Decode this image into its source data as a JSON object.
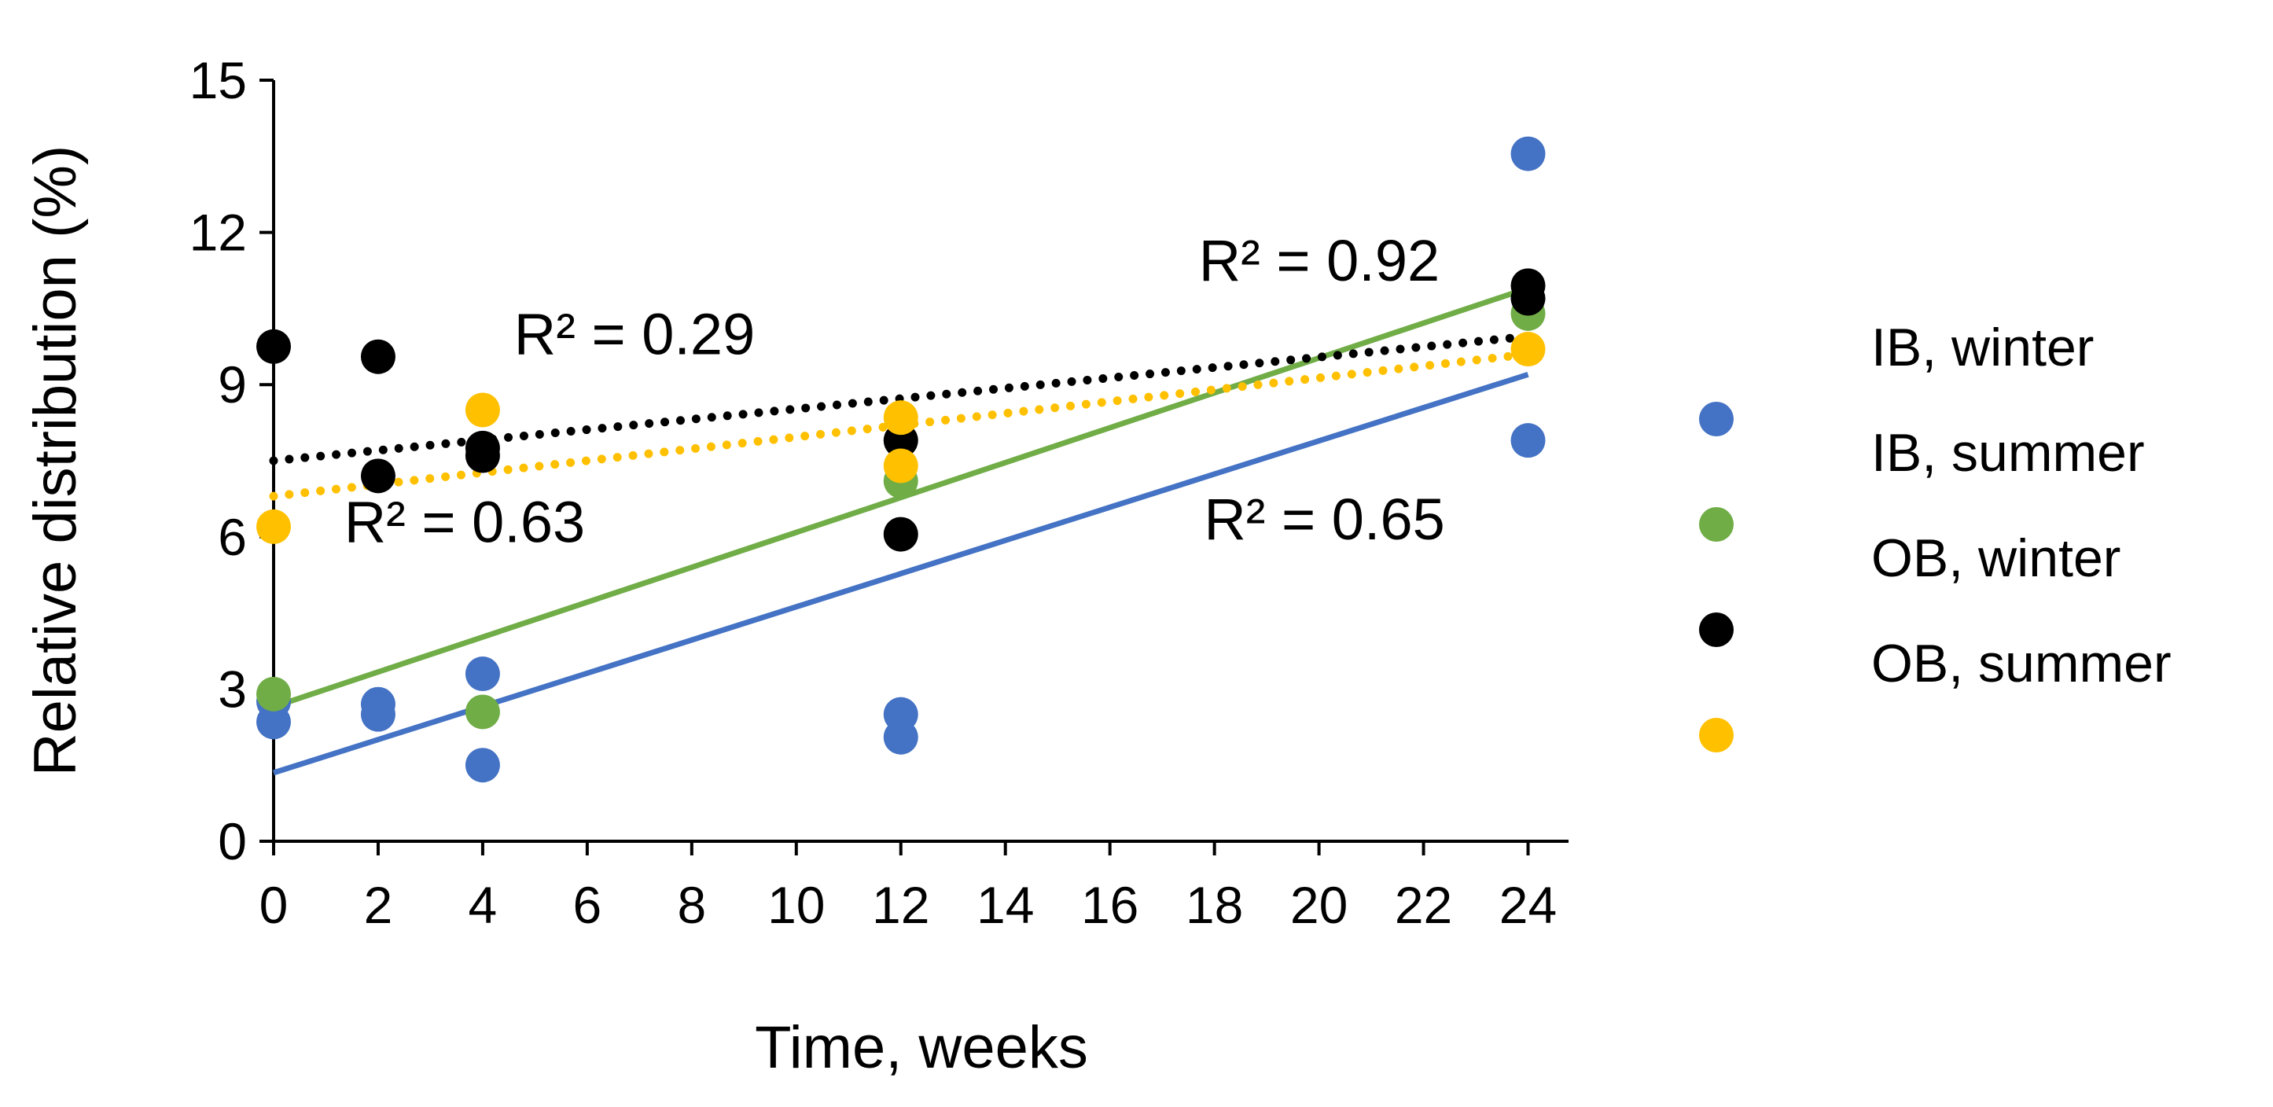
{
  "chart_data": {
    "type": "scatter",
    "title": "",
    "xlabel": "Time, weeks",
    "ylabel": "Relative distribution (%)",
    "xlim": [
      0,
      25
    ],
    "ylim": [
      0,
      15
    ],
    "xticks": [
      0,
      2,
      4,
      6,
      8,
      10,
      12,
      14,
      16,
      18,
      20,
      22,
      24
    ],
    "yticks": [
      0,
      3,
      6,
      9,
      12,
      15
    ],
    "grid": false,
    "legend_position": "right",
    "legend": [
      "IB, winter",
      "IB, summer",
      "OB, winter",
      "OB, summer"
    ],
    "series": [
      {
        "name": "IB, winter",
        "color": "#4472C4",
        "points": [
          [
            0,
            2.35
          ],
          [
            0,
            2.75
          ],
          [
            2,
            2.5
          ],
          [
            2,
            2.7
          ],
          [
            4,
            1.5
          ],
          [
            4,
            3.3
          ],
          [
            12,
            2.05
          ],
          [
            12,
            2.5
          ],
          [
            24,
            7.9
          ],
          [
            24,
            13.55
          ]
        ],
        "trendline": {
          "style": "solid",
          "x": [
            0,
            24
          ],
          "y": [
            1.35,
            9.2
          ]
        }
      },
      {
        "name": "IB, summer",
        "color": "#70AD47",
        "points": [
          [
            0,
            2.9
          ],
          [
            4,
            2.55
          ],
          [
            12,
            7.1
          ],
          [
            24,
            10.4
          ]
        ],
        "trendline": {
          "style": "solid",
          "x": [
            0,
            24
          ],
          "y": [
            2.65,
            10.9
          ]
        }
      },
      {
        "name": "OB, winter",
        "color": "#000000",
        "points": [
          [
            0,
            9.75
          ],
          [
            2,
            9.55
          ],
          [
            2,
            7.2
          ],
          [
            4,
            7.6
          ],
          [
            4,
            7.75
          ],
          [
            12,
            7.9
          ],
          [
            12,
            6.05
          ],
          [
            24,
            10.7
          ],
          [
            24,
            10.95
          ]
        ],
        "trendline": {
          "style": "dotted",
          "x": [
            0,
            24
          ],
          "y": [
            7.5,
            9.95
          ]
        }
      },
      {
        "name": "OB, summer",
        "color": "#FFC000",
        "points": [
          [
            0,
            6.2
          ],
          [
            4,
            8.5
          ],
          [
            12,
            8.35
          ],
          [
            12,
            7.4
          ],
          [
            24,
            9.7
          ]
        ],
        "trendline": {
          "style": "dotted",
          "x": [
            0,
            24
          ],
          "y": [
            6.8,
            9.6
          ]
        }
      }
    ],
    "annotations": [
      {
        "text": "R² = 0.29",
        "x": 4.6,
        "y": 9.6
      },
      {
        "text": "R² = 0.63",
        "x": 1.35,
        "y": 5.9
      },
      {
        "text": "R² = 0.92",
        "x": 17.7,
        "y": 11.05
      },
      {
        "text": "R² = 0.65",
        "x": 17.8,
        "y": 5.95
      }
    ]
  }
}
